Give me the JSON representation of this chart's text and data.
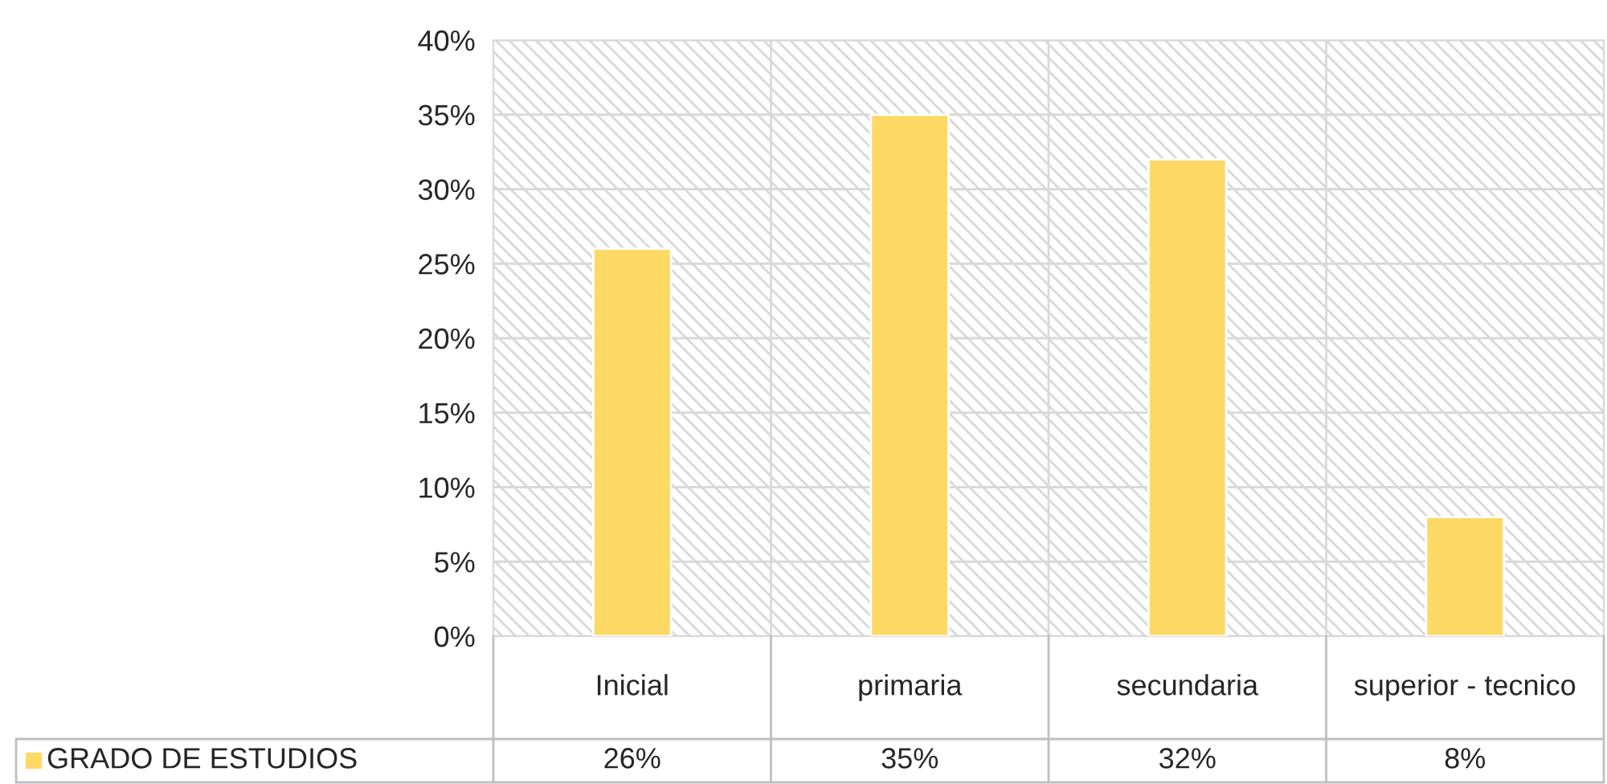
{
  "chart_data": {
    "type": "bar",
    "categories": [
      "Inicial",
      "primaria",
      "secundaria",
      "superior - tecnico"
    ],
    "series": [
      {
        "name": "GRADO DE ESTUDIOS",
        "color": "#ffd966",
        "values": [
          26,
          35,
          32,
          8
        ],
        "value_labels": [
          "26%",
          "35%",
          "32%",
          "8%"
        ]
      }
    ],
    "ylim": [
      0,
      40
    ],
    "yticks": [
      {
        "value": 0,
        "label": "0%"
      },
      {
        "value": 5,
        "label": "5%"
      },
      {
        "value": 10,
        "label": "10%"
      },
      {
        "value": 15,
        "label": "15%"
      },
      {
        "value": 20,
        "label": "20%"
      },
      {
        "value": 25,
        "label": "25%"
      },
      {
        "value": 30,
        "label": "30%"
      },
      {
        "value": 35,
        "label": "35%"
      },
      {
        "value": 40,
        "label": "40%"
      }
    ],
    "grid": "y",
    "legend": "bottom left"
  }
}
